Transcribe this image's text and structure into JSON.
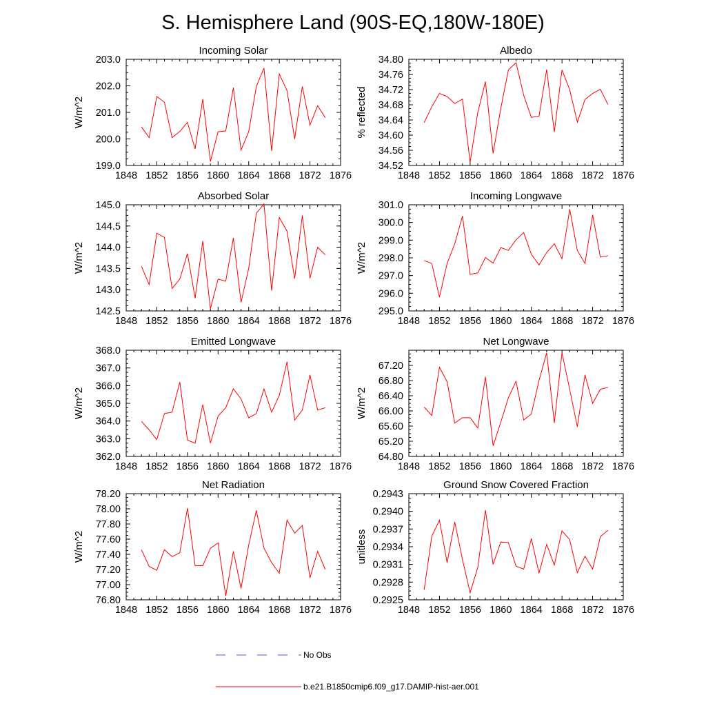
{
  "title": "S. Hemisphere Land (90S-EQ,180W-180E)",
  "legend": {
    "entries": [
      {
        "label": "No Obs",
        "color": "#5050c8",
        "style": "dashed"
      },
      {
        "label": "b.e21.B1850cmip6.f09_g17.DAMIP-hist-aer.001",
        "color": "#ff0000",
        "style": "solid"
      }
    ]
  },
  "chart_data": [
    {
      "type": "line",
      "title": "Incoming Solar",
      "ylabel": "W/m^2",
      "xlim": [
        1848,
        1876
      ],
      "ylim": [
        199.0,
        203.0
      ],
      "xticks": [
        "1848",
        "1852",
        "1856",
        "1860",
        "1864",
        "1868",
        "1872",
        "1876"
      ],
      "yticks": [
        "199.0",
        "200.0",
        "201.0",
        "202.0",
        "203.0"
      ],
      "x": [
        1850,
        1851,
        1852,
        1853,
        1854,
        1855,
        1856,
        1857,
        1858,
        1859,
        1860,
        1861,
        1862,
        1863,
        1864,
        1865,
        1866,
        1867,
        1868,
        1869,
        1870,
        1871,
        1872,
        1873,
        1874
      ],
      "series": [
        {
          "name": "b.e21.B1850cmip6.f09_g17.DAMIP-hist-aer.001",
          "color": "#ff0000",
          "values": [
            200.45,
            200.05,
            201.6,
            201.38,
            200.05,
            200.28,
            200.62,
            199.62,
            201.5,
            199.15,
            200.27,
            200.3,
            201.93,
            199.58,
            200.27,
            201.98,
            202.67,
            199.55,
            202.45,
            201.82,
            200.0,
            201.98,
            200.52,
            201.25,
            200.8
          ]
        }
      ]
    },
    {
      "type": "line",
      "title": "Albedo",
      "ylabel": "% reflected",
      "xlim": [
        1848,
        1876
      ],
      "ylim": [
        34.52,
        34.8
      ],
      "xticks": [
        "1848",
        "1852",
        "1856",
        "1860",
        "1864",
        "1868",
        "1872",
        "1876"
      ],
      "yticks": [
        "34.52",
        "34.56",
        "34.60",
        "34.64",
        "34.68",
        "34.72",
        "34.76",
        "34.80"
      ],
      "x": [
        1850,
        1851,
        1852,
        1853,
        1854,
        1855,
        1856,
        1857,
        1858,
        1859,
        1860,
        1861,
        1862,
        1863,
        1864,
        1865,
        1866,
        1867,
        1868,
        1869,
        1870,
        1871,
        1872,
        1873,
        1874
      ],
      "series": [
        {
          "name": "b.e21.B1850cmip6.f09_g17.DAMIP-hist-aer.001",
          "color": "#ff0000",
          "values": [
            34.633,
            34.675,
            34.71,
            34.702,
            34.683,
            34.695,
            34.528,
            34.66,
            34.741,
            34.552,
            34.67,
            34.772,
            34.791,
            34.705,
            34.647,
            34.65,
            34.773,
            34.608,
            34.772,
            34.72,
            34.634,
            34.694,
            34.71,
            34.721,
            34.681
          ]
        }
      ]
    },
    {
      "type": "line",
      "title": "Absorbed Solar",
      "ylabel": "W/m^2",
      "xlim": [
        1848,
        1876
      ],
      "ylim": [
        142.5,
        145.0
      ],
      "xticks": [
        "1848",
        "1852",
        "1856",
        "1860",
        "1864",
        "1868",
        "1872",
        "1876"
      ],
      "yticks": [
        "142.5",
        "143.0",
        "143.5",
        "144.0",
        "144.5",
        "145.0"
      ],
      "x": [
        1850,
        1851,
        1852,
        1853,
        1854,
        1855,
        1856,
        1857,
        1858,
        1859,
        1860,
        1861,
        1862,
        1863,
        1864,
        1865,
        1866,
        1867,
        1868,
        1869,
        1870,
        1871,
        1872,
        1873,
        1874
      ],
      "series": [
        {
          "name": "b.e21.B1850cmip6.f09_g17.DAMIP-hist-aer.001",
          "color": "#ff0000",
          "values": [
            143.55,
            143.12,
            144.33,
            144.23,
            143.03,
            143.25,
            143.85,
            142.8,
            144.15,
            142.55,
            143.25,
            143.2,
            144.22,
            142.7,
            143.5,
            144.8,
            145.02,
            142.98,
            144.7,
            144.38,
            143.26,
            144.75,
            143.27,
            144.0,
            143.82
          ]
        }
      ]
    },
    {
      "type": "line",
      "title": "Incoming Longwave",
      "ylabel": "W/m^2",
      "xlim": [
        1848,
        1876
      ],
      "ylim": [
        295.0,
        301.0
      ],
      "xticks": [
        "1848",
        "1852",
        "1856",
        "1860",
        "1864",
        "1868",
        "1872",
        "1876"
      ],
      "yticks": [
        "295.0",
        "296.0",
        "297.0",
        "298.0",
        "299.0",
        "300.0",
        "301.0"
      ],
      "x": [
        1850,
        1851,
        1852,
        1853,
        1854,
        1855,
        1856,
        1857,
        1858,
        1859,
        1860,
        1861,
        1862,
        1863,
        1864,
        1865,
        1866,
        1867,
        1868,
        1869,
        1870,
        1871,
        1872,
        1873,
        1874
      ],
      "series": [
        {
          "name": "b.e21.B1850cmip6.f09_g17.DAMIP-hist-aer.001",
          "color": "#ff0000",
          "values": [
            297.85,
            297.68,
            295.78,
            297.68,
            298.8,
            300.37,
            297.07,
            297.15,
            298.02,
            297.7,
            298.58,
            298.42,
            299.02,
            299.43,
            298.2,
            297.6,
            298.3,
            298.8,
            297.95,
            300.75,
            298.42,
            297.68,
            300.43,
            298.05,
            298.12
          ]
        }
      ]
    },
    {
      "type": "line",
      "title": "Emitted Longwave",
      "ylabel": "W/m^2",
      "xlim": [
        1848,
        1876
      ],
      "ylim": [
        362.0,
        368.0
      ],
      "xticks": [
        "1848",
        "1852",
        "1856",
        "1860",
        "1864",
        "1868",
        "1872",
        "1876"
      ],
      "yticks": [
        "362.0",
        "363.0",
        "364.0",
        "365.0",
        "366.0",
        "367.0",
        "368.0"
      ],
      "x": [
        1850,
        1851,
        1852,
        1853,
        1854,
        1855,
        1856,
        1857,
        1858,
        1859,
        1860,
        1861,
        1862,
        1863,
        1864,
        1865,
        1866,
        1867,
        1868,
        1869,
        1870,
        1871,
        1872,
        1873,
        1874
      ],
      "series": [
        {
          "name": "b.e21.B1850cmip6.f09_g17.DAMIP-hist-aer.001",
          "color": "#ff0000",
          "values": [
            363.98,
            363.5,
            362.95,
            364.42,
            364.5,
            366.2,
            362.92,
            362.75,
            364.93,
            362.75,
            364.28,
            364.75,
            365.82,
            365.25,
            364.18,
            364.42,
            365.82,
            364.5,
            365.45,
            367.35,
            364.05,
            364.62,
            366.6,
            364.62,
            364.75
          ]
        }
      ]
    },
    {
      "type": "line",
      "title": "Net Longwave",
      "ylabel": "W/m^2",
      "xlim": [
        1848,
        1876
      ],
      "ylim": [
        64.8,
        67.6
      ],
      "xticks": [
        "1848",
        "1852",
        "1856",
        "1860",
        "1864",
        "1868",
        "1872",
        "1876"
      ],
      "yticks": [
        "64.80",
        "65.20",
        "65.60",
        "66.00",
        "66.40",
        "66.80",
        "67.20"
      ],
      "x": [
        1850,
        1851,
        1852,
        1853,
        1854,
        1855,
        1856,
        1857,
        1858,
        1859,
        1860,
        1861,
        1862,
        1863,
        1864,
        1865,
        1866,
        1867,
        1868,
        1869,
        1870,
        1871,
        1872,
        1873,
        1874
      ],
      "series": [
        {
          "name": "b.e21.B1850cmip6.f09_g17.DAMIP-hist-aer.001",
          "color": "#ff0000",
          "values": [
            66.1,
            65.88,
            67.15,
            66.77,
            65.68,
            65.82,
            65.82,
            65.55,
            66.9,
            65.08,
            65.7,
            66.35,
            66.78,
            65.76,
            65.92,
            66.8,
            67.53,
            65.68,
            67.53,
            66.57,
            65.58,
            66.95,
            66.2,
            66.57,
            66.62
          ]
        }
      ]
    },
    {
      "type": "line",
      "title": "Net Radiation",
      "ylabel": "W/m^2",
      "xlim": [
        1848,
        1876
      ],
      "ylim": [
        76.8,
        78.2
      ],
      "xticks": [
        "1848",
        "1852",
        "1856",
        "1860",
        "1864",
        "1868",
        "1872",
        "1876"
      ],
      "yticks": [
        "76.80",
        "77.00",
        "77.20",
        "77.40",
        "77.60",
        "77.80",
        "78.00",
        "78.20"
      ],
      "x": [
        1850,
        1851,
        1852,
        1853,
        1854,
        1855,
        1856,
        1857,
        1858,
        1859,
        1860,
        1861,
        1862,
        1863,
        1864,
        1865,
        1866,
        1867,
        1868,
        1869,
        1870,
        1871,
        1872,
        1873,
        1874
      ],
      "series": [
        {
          "name": "b.e21.B1850cmip6.f09_g17.DAMIP-hist-aer.001",
          "color": "#ff0000",
          "values": [
            77.46,
            77.24,
            77.19,
            77.46,
            77.37,
            77.42,
            78.01,
            77.25,
            77.25,
            77.48,
            77.55,
            76.85,
            77.44,
            76.95,
            77.52,
            77.98,
            77.48,
            77.29,
            77.15,
            77.85,
            77.68,
            77.78,
            77.09,
            77.44,
            77.2
          ]
        }
      ]
    },
    {
      "type": "line",
      "title": "Ground Snow Covered Fraction",
      "ylabel": "unitless",
      "xlim": [
        1848,
        1876
      ],
      "ylim": [
        0.2925,
        0.2943
      ],
      "xticks": [
        "1848",
        "1852",
        "1856",
        "1860",
        "1864",
        "1868",
        "1872",
        "1876"
      ],
      "yticks": [
        "0.2925",
        "0.2928",
        "0.2931",
        "0.2934",
        "0.2937",
        "0.2940",
        "0.2943"
      ],
      "x": [
        1850,
        1851,
        1852,
        1853,
        1854,
        1855,
        1856,
        1857,
        1858,
        1859,
        1860,
        1861,
        1862,
        1863,
        1864,
        1865,
        1866,
        1867,
        1868,
        1869,
        1870,
        1871,
        1872,
        1873,
        1874
      ],
      "series": [
        {
          "name": "b.e21.B1850cmip6.f09_g17.DAMIP-hist-aer.001",
          "color": "#ff0000",
          "values": [
            0.29267,
            0.29358,
            0.29385,
            0.29313,
            0.29382,
            0.29318,
            0.29262,
            0.29305,
            0.29402,
            0.2931,
            0.29348,
            0.29347,
            0.29307,
            0.29302,
            0.29354,
            0.29295,
            0.29344,
            0.29309,
            0.29367,
            0.29352,
            0.29296,
            0.29324,
            0.29302,
            0.29357,
            0.29368
          ]
        }
      ]
    }
  ]
}
